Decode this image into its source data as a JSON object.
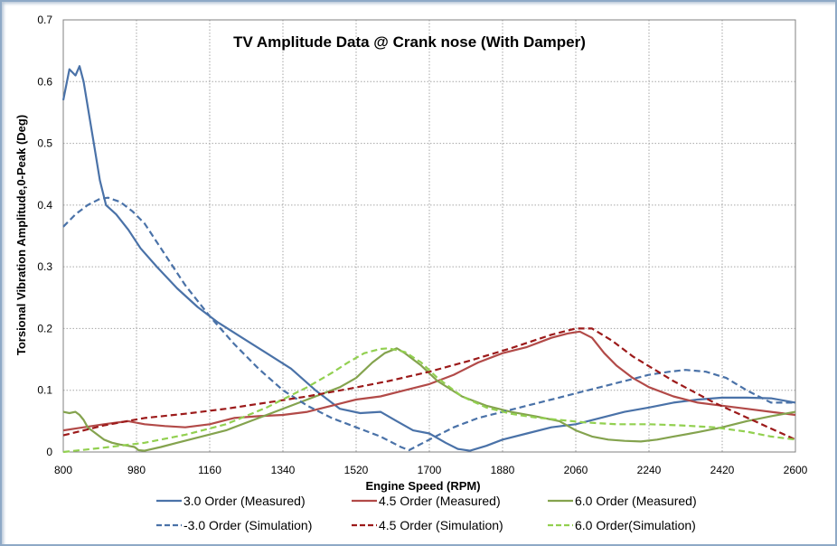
{
  "chart_data": {
    "type": "line",
    "title": "TV Amplitude Data @ Crank nose (With Damper)",
    "xlabel": "Engine Speed (RPM)",
    "ylabel": "Torsional Vibration Amplitude,0-Peak (Deg)",
    "xlim": [
      800,
      2600
    ],
    "ylim": [
      0,
      0.7
    ],
    "x_ticks": [
      "800",
      "980",
      "1160",
      "1340",
      "1520",
      "1700",
      "1880",
      "2060",
      "2240",
      "2420",
      "2600"
    ],
    "y_ticks": [
      "0",
      "0.1",
      "0.2",
      "0.3",
      "0.4",
      "0.5",
      "0.6",
      "0.7"
    ],
    "grid": true,
    "legend_position": "bottom",
    "series": [
      {
        "name": "3.0 Order (Measured)",
        "color": "#4a72a8",
        "dash": "solid",
        "x": [
          800,
          815,
          830,
          840,
          850,
          860,
          875,
          890,
          905,
          930,
          960,
          990,
          1030,
          1080,
          1130,
          1180,
          1240,
          1300,
          1360,
          1420,
          1480,
          1530,
          1580,
          1620,
          1660,
          1700,
          1740,
          1770,
          1800,
          1840,
          1880,
          1940,
          2000,
          2060,
          2120,
          2180,
          2240,
          2300,
          2360,
          2420,
          2480,
          2540,
          2600
        ],
        "y": [
          0.57,
          0.62,
          0.61,
          0.625,
          0.6,
          0.56,
          0.5,
          0.44,
          0.4,
          0.385,
          0.36,
          0.33,
          0.3,
          0.265,
          0.235,
          0.21,
          0.185,
          0.16,
          0.135,
          0.1,
          0.07,
          0.063,
          0.065,
          0.05,
          0.035,
          0.03,
          0.015,
          0.005,
          0.002,
          0.01,
          0.02,
          0.03,
          0.04,
          0.045,
          0.055,
          0.065,
          0.072,
          0.08,
          0.085,
          0.088,
          0.088,
          0.087,
          0.08
        ]
      },
      {
        "name": "4.5 Order (Measured)",
        "color": "#b24a48",
        "dash": "solid",
        "x": [
          800,
          850,
          900,
          960,
          1000,
          1050,
          1100,
          1160,
          1220,
          1280,
          1340,
          1400,
          1460,
          1520,
          1580,
          1640,
          1700,
          1760,
          1820,
          1880,
          1940,
          2000,
          2040,
          2070,
          2100,
          2130,
          2160,
          2200,
          2240,
          2300,
          2360,
          2420,
          2480,
          2540,
          2600
        ],
        "y": [
          0.035,
          0.04,
          0.045,
          0.05,
          0.045,
          0.042,
          0.04,
          0.045,
          0.055,
          0.058,
          0.06,
          0.065,
          0.075,
          0.085,
          0.09,
          0.1,
          0.11,
          0.125,
          0.145,
          0.16,
          0.17,
          0.185,
          0.192,
          0.195,
          0.185,
          0.16,
          0.14,
          0.12,
          0.105,
          0.09,
          0.08,
          0.075,
          0.07,
          0.065,
          0.06
        ]
      },
      {
        "name": "6.0 Order (Measured)",
        "color": "#84a34e",
        "dash": "solid",
        "x": [
          800,
          815,
          830,
          840,
          850,
          860,
          880,
          900,
          920,
          940,
          960,
          975,
          985,
          1000,
          1040,
          1080,
          1140,
          1200,
          1260,
          1320,
          1380,
          1440,
          1480,
          1520,
          1560,
          1590,
          1620,
          1640,
          1680,
          1720,
          1780,
          1840,
          1900,
          1960,
          2020,
          2060,
          2100,
          2140,
          2180,
          2220,
          2260,
          2300,
          2360,
          2420,
          2480,
          2540,
          2600
        ],
        "y": [
          0.065,
          0.063,
          0.065,
          0.06,
          0.052,
          0.04,
          0.03,
          0.02,
          0.015,
          0.012,
          0.01,
          0.008,
          0.003,
          0.002,
          0.008,
          0.015,
          0.025,
          0.035,
          0.05,
          0.065,
          0.08,
          0.095,
          0.105,
          0.12,
          0.145,
          0.16,
          0.168,
          0.16,
          0.14,
          0.115,
          0.09,
          0.075,
          0.065,
          0.058,
          0.05,
          0.035,
          0.025,
          0.02,
          0.018,
          0.017,
          0.02,
          0.025,
          0.032,
          0.04,
          0.05,
          0.058,
          0.065
        ]
      },
      {
        "name": "-3.0 Order (Simulation)",
        "color": "#4a72a8",
        "dash": "dashed",
        "x": [
          800,
          830,
          860,
          890,
          910,
          940,
          970,
          1000,
          1050,
          1100,
          1160,
          1220,
          1280,
          1340,
          1400,
          1460,
          1520,
          1580,
          1630,
          1650,
          1700,
          1760,
          1820,
          1880,
          1940,
          2000,
          2060,
          2120,
          2180,
          2240,
          2290,
          2330,
          2380,
          2430,
          2480,
          2540,
          2600
        ],
        "y": [
          0.365,
          0.385,
          0.4,
          0.41,
          0.412,
          0.405,
          0.39,
          0.37,
          0.32,
          0.27,
          0.22,
          0.175,
          0.135,
          0.1,
          0.075,
          0.055,
          0.04,
          0.025,
          0.008,
          0.003,
          0.02,
          0.04,
          0.055,
          0.065,
          0.075,
          0.085,
          0.095,
          0.105,
          0.115,
          0.125,
          0.13,
          0.133,
          0.13,
          0.12,
          0.1,
          0.08,
          0.08
        ]
      },
      {
        "name": "4.5 Order (Simulation)",
        "color": "#9c1a1a",
        "dash": "dashed",
        "x": [
          800,
          900,
          1000,
          1100,
          1200,
          1300,
          1400,
          1500,
          1600,
          1700,
          1800,
          1900,
          2000,
          2060,
          2100,
          2150,
          2200,
          2300,
          2400,
          2500,
          2600
        ],
        "y": [
          0.027,
          0.043,
          0.055,
          0.062,
          0.07,
          0.08,
          0.09,
          0.102,
          0.115,
          0.13,
          0.148,
          0.168,
          0.19,
          0.2,
          0.2,
          0.18,
          0.155,
          0.115,
          0.08,
          0.05,
          0.02
        ]
      },
      {
        "name": "6.0 Order(Simulation)",
        "color": "#92d050",
        "dash": "dashed",
        "x": [
          800,
          900,
          1000,
          1100,
          1200,
          1300,
          1400,
          1460,
          1500,
          1540,
          1580,
          1600,
          1640,
          1680,
          1720,
          1780,
          1840,
          1900,
          1960,
          2020,
          2080,
          2160,
          2240,
          2320,
          2400,
          2480,
          2540,
          2600
        ],
        "y": [
          0.0,
          0.007,
          0.015,
          0.028,
          0.045,
          0.072,
          0.105,
          0.128,
          0.145,
          0.16,
          0.167,
          0.168,
          0.162,
          0.145,
          0.12,
          0.09,
          0.072,
          0.062,
          0.056,
          0.052,
          0.048,
          0.045,
          0.045,
          0.043,
          0.04,
          0.033,
          0.025,
          0.02
        ]
      }
    ]
  }
}
